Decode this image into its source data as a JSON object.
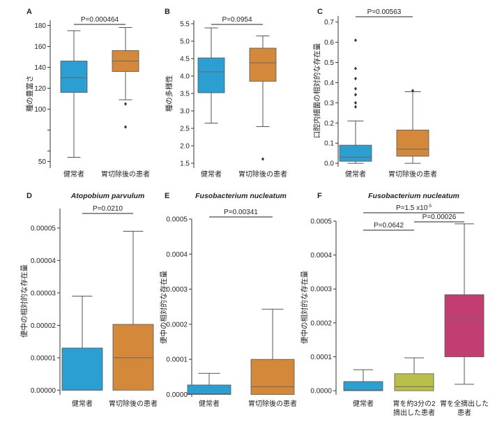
{
  "colors": {
    "healthy": "#2b9fd2",
    "gastrectomy": "#d4893a",
    "partial": "#b9c04a",
    "total": "#c23d72",
    "median": "#666666",
    "outlier": "#333333"
  },
  "chart_data": [
    {
      "type": "boxplot",
      "panel_label": "A",
      "title": "",
      "ylabel": "種の豊富さ",
      "ylim": [
        45,
        185
      ],
      "yticks": [
        50,
        60,
        80,
        100,
        120,
        140,
        160,
        180
      ],
      "ytick_labels": [
        "50",
        "",
        "",
        "100",
        "120",
        "140",
        "160",
        "180"
      ],
      "categories": [
        "健常者",
        "胃切除後の患者"
      ],
      "boxes": [
        {
          "group": "健常者",
          "color_key": "healthy",
          "whisker_low": 54,
          "q1": 116,
          "median": 130,
          "q3": 146,
          "whisker_high": 175,
          "outliers": []
        },
        {
          "group": "胃切除後の患者",
          "color_key": "gastrectomy",
          "whisker_low": 109,
          "q1": 136,
          "median": 146,
          "q3": 156,
          "whisker_high": 178,
          "outliers": [
            105,
            83
          ]
        }
      ],
      "comparisons": [
        {
          "from": 0,
          "to": 1,
          "label": "P=0.000464"
        }
      ]
    },
    {
      "type": "boxplot",
      "panel_label": "B",
      "title": "",
      "ylabel": "種の多様性",
      "ylim": [
        1.4,
        5.6
      ],
      "yticks": [
        1.5,
        2.0,
        2.5,
        3.0,
        3.5,
        4.0,
        4.5,
        5.0,
        5.5
      ],
      "ytick_labels": [
        "1.5",
        "2.0",
        "2.5",
        "3.0",
        "3.5",
        "4.0",
        "4.5",
        "5.0",
        "5.5"
      ],
      "categories": [
        "健常者",
        "胃切除後の患者"
      ],
      "boxes": [
        {
          "group": "健常者",
          "color_key": "healthy",
          "whisker_low": 2.65,
          "q1": 3.52,
          "median": 4.12,
          "q3": 4.52,
          "whisker_high": 5.38,
          "outliers": []
        },
        {
          "group": "胃切除後の患者",
          "color_key": "gastrectomy",
          "whisker_low": 2.55,
          "q1": 3.85,
          "median": 4.38,
          "q3": 4.8,
          "whisker_high": 5.15,
          "outliers": [
            1.62
          ]
        }
      ],
      "comparisons": [
        {
          "from": 0,
          "to": 1,
          "label": "P=0.0954"
        }
      ]
    },
    {
      "type": "boxplot",
      "panel_label": "C",
      "title": "",
      "ylabel": "口腔内細菌の相対的な存在量",
      "ylim": [
        -0.01,
        0.73
      ],
      "yticks": [
        0.0,
        0.1,
        0.2,
        0.3,
        0.4,
        0.5,
        0.6,
        0.7
      ],
      "ytick_labels": [
        "0.0",
        "0.1",
        "0.2",
        "0.3",
        "0.4",
        "0.5",
        "0.6",
        "0.7"
      ],
      "categories": [
        "健常者",
        "胃切除後の患者"
      ],
      "boxes": [
        {
          "group": "健常者",
          "color_key": "healthy",
          "whisker_low": 0.0,
          "q1": 0.01,
          "median": 0.03,
          "q3": 0.09,
          "whisker_high": 0.21,
          "outliers": [
            0.61,
            0.47,
            0.42,
            0.37,
            0.34,
            0.3,
            0.28
          ]
        },
        {
          "group": "胃切除後の患者",
          "color_key": "gastrectomy",
          "whisker_low": 0.0,
          "q1": 0.035,
          "median": 0.07,
          "q3": 0.165,
          "whisker_high": 0.355,
          "outliers": [
            0.36
          ]
        }
      ],
      "comparisons": [
        {
          "from": 0,
          "to": 1,
          "label": "P=0.00563"
        }
      ]
    },
    {
      "type": "boxplot",
      "panel_label": "D",
      "title": "Atopobium parvulum",
      "ylabel": "便中の相対的な存在量",
      "ylim": [
        -1e-06,
        5.6e-05
      ],
      "yticks": [
        0,
        1e-05,
        2e-05,
        3e-05,
        4e-05,
        5e-05
      ],
      "ytick_labels": [
        "0.00000",
        "0.00001",
        "0.00002",
        "0.00003",
        "0.00004",
        "0.00005"
      ],
      "categories": [
        "健常者",
        "胃切除後の患者"
      ],
      "boxes": [
        {
          "group": "健常者",
          "color_key": "healthy",
          "whisker_low": 0,
          "q1": 0,
          "median": 0,
          "q3": 1.3e-05,
          "whisker_high": 2.9e-05,
          "outliers": []
        },
        {
          "group": "胃切除後の患者",
          "color_key": "gastrectomy",
          "whisker_low": 0,
          "q1": 0,
          "median": 1e-05,
          "q3": 2.03e-05,
          "whisker_high": 4.9e-05,
          "outliers": []
        }
      ],
      "comparisons": [
        {
          "from": 0,
          "to": 1,
          "label": "P=0.0210"
        }
      ]
    },
    {
      "type": "boxplot",
      "panel_label": "E",
      "title": "Fusobacterium nucleatum",
      "ylabel": "便中の相対的な存在量",
      "ylim": [
        -3e-06,
        0.0005
      ],
      "yticks": [
        0,
        0.0001,
        0.0002,
        0.0003,
        0.0004,
        0.0005
      ],
      "ytick_labels": [
        "0.0000",
        "0.0001",
        "0.0002",
        "0.0003",
        "0.0004",
        "0.0005"
      ],
      "categories": [
        "健常者",
        "胃切除後の患者"
      ],
      "boxes": [
        {
          "group": "健常者",
          "color_key": "healthy",
          "whisker_low": 0,
          "q1": 0,
          "median": 2e-06,
          "q3": 2.7e-05,
          "whisker_high": 6e-05,
          "outliers": []
        },
        {
          "group": "胃切除後の患者",
          "color_key": "gastrectomy",
          "whisker_low": 0,
          "q1": 0,
          "median": 2.2e-05,
          "q3": 0.0001,
          "whisker_high": 0.000243,
          "outliers": []
        }
      ],
      "comparisons": [
        {
          "from": 0,
          "to": 1,
          "label": "P=0.00341"
        }
      ]
    },
    {
      "type": "boxplot",
      "panel_label": "F",
      "title": "Fusobacterium nucleatum",
      "ylabel": "便中の相対的な存在量",
      "ylim": [
        -8e-06,
        0.0005
      ],
      "yticks": [
        0,
        0.0001,
        0.0002,
        0.0003,
        0.0004,
        0.0005
      ],
      "ytick_labels": [
        "0.0000",
        "0.0001",
        "0.0002",
        "0.0003",
        "0.0004",
        "0.0005"
      ],
      "categories": [
        "健常者",
        "胃を約3分の2\n摘出した患者",
        "胃を全摘出した\n患者"
      ],
      "boxes": [
        {
          "group": "健常者",
          "color_key": "healthy",
          "whisker_low": 0,
          "q1": 0,
          "median": 2e-06,
          "q3": 2.7e-05,
          "whisker_high": 6.2e-05,
          "outliers": []
        },
        {
          "group": "胃を約3分の2摘出した患者",
          "color_key": "partial",
          "whisker_low": 0,
          "q1": 0,
          "median": 1.2e-05,
          "q3": 5e-05,
          "whisker_high": 9.7e-05,
          "outliers": []
        },
        {
          "group": "胃を全摘出した患者",
          "color_key": "total",
          "whisker_low": 1.9e-05,
          "q1": 0.0001,
          "median": 0.00021,
          "q3": 0.000283,
          "whisker_high": 0.000492,
          "outliers": []
        }
      ],
      "comparisons": [
        {
          "from": 0,
          "to": 1,
          "label": "P=0.0642"
        },
        {
          "from": 1,
          "to": 2,
          "label": "P=0.00026"
        },
        {
          "from": 0,
          "to": 2,
          "label": "P=1.5 x10",
          "label_sup": "-5"
        }
      ]
    }
  ]
}
